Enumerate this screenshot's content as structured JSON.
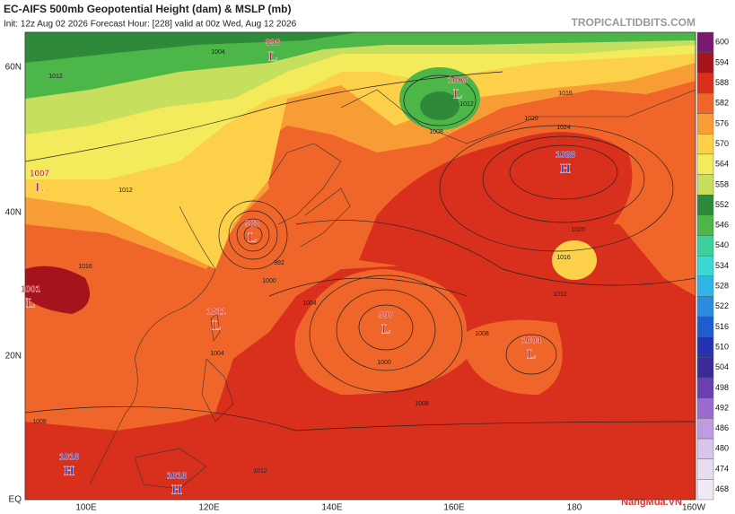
{
  "header": {
    "title": "EC-AIFS 500mb Geopotential Height (dam) & MSLP (mb)",
    "subtitle": "Init: 12z Aug 02 2026   Forecast Hour: [228]   valid at 00z Wed, Aug 12 2026",
    "source": "TROPICALTIDBITS.COM"
  },
  "lat_labels": [
    "60N",
    "40N",
    "20N",
    "EQ"
  ],
  "lon_labels": [
    "100E",
    "120E",
    "140E",
    "160E",
    "180",
    "160W"
  ],
  "colorbar": {
    "levels": [
      600,
      594,
      588,
      582,
      576,
      570,
      564,
      558,
      552,
      546,
      540,
      534,
      528,
      522,
      516,
      510,
      504,
      498,
      492,
      486,
      480,
      474,
      468
    ],
    "colors": [
      "#7a1a6e",
      "#a5141c",
      "#d9301e",
      "#f0662a",
      "#f89d35",
      "#fdd04a",
      "#f3ea5c",
      "#c6df5e",
      "#2e8a3a",
      "#4cb648",
      "#3ecf9a",
      "#3ad9d2",
      "#30b5e6",
      "#2a8be0",
      "#1f5cd0",
      "#2533b0",
      "#3b2a98",
      "#6a40b0",
      "#9a6ad0",
      "#bf9ce0",
      "#d9c4ec",
      "#e8dcf1",
      "#f1e9f6"
    ]
  },
  "pressure_centers": [
    {
      "value": "998",
      "letter": "L"
    },
    {
      "value": "1009",
      "letter": "L"
    },
    {
      "value": "1028",
      "letter": "H"
    },
    {
      "value": "982",
      "letter": "L"
    },
    {
      "value": "1011",
      "letter": "L"
    },
    {
      "value": "997",
      "letter": "L"
    },
    {
      "value": "1004",
      "letter": "L"
    },
    {
      "value": "1001",
      "letter": "L"
    },
    {
      "value": "1007",
      "letter": "L"
    },
    {
      "value": "1016",
      "letter": "H"
    },
    {
      "value": "1016",
      "letter": "H"
    }
  ],
  "isobar_labels": [
    "1004",
    "1012",
    "1012",
    "1008",
    "1016",
    "1020",
    "1024",
    "1020",
    "1016",
    "1012",
    "1008",
    "1000",
    "1004",
    "1008",
    "1004",
    "1000",
    "992",
    "1012",
    "1008",
    "1016",
    "1012"
  ],
  "watermark": "NangMua.VN"
}
